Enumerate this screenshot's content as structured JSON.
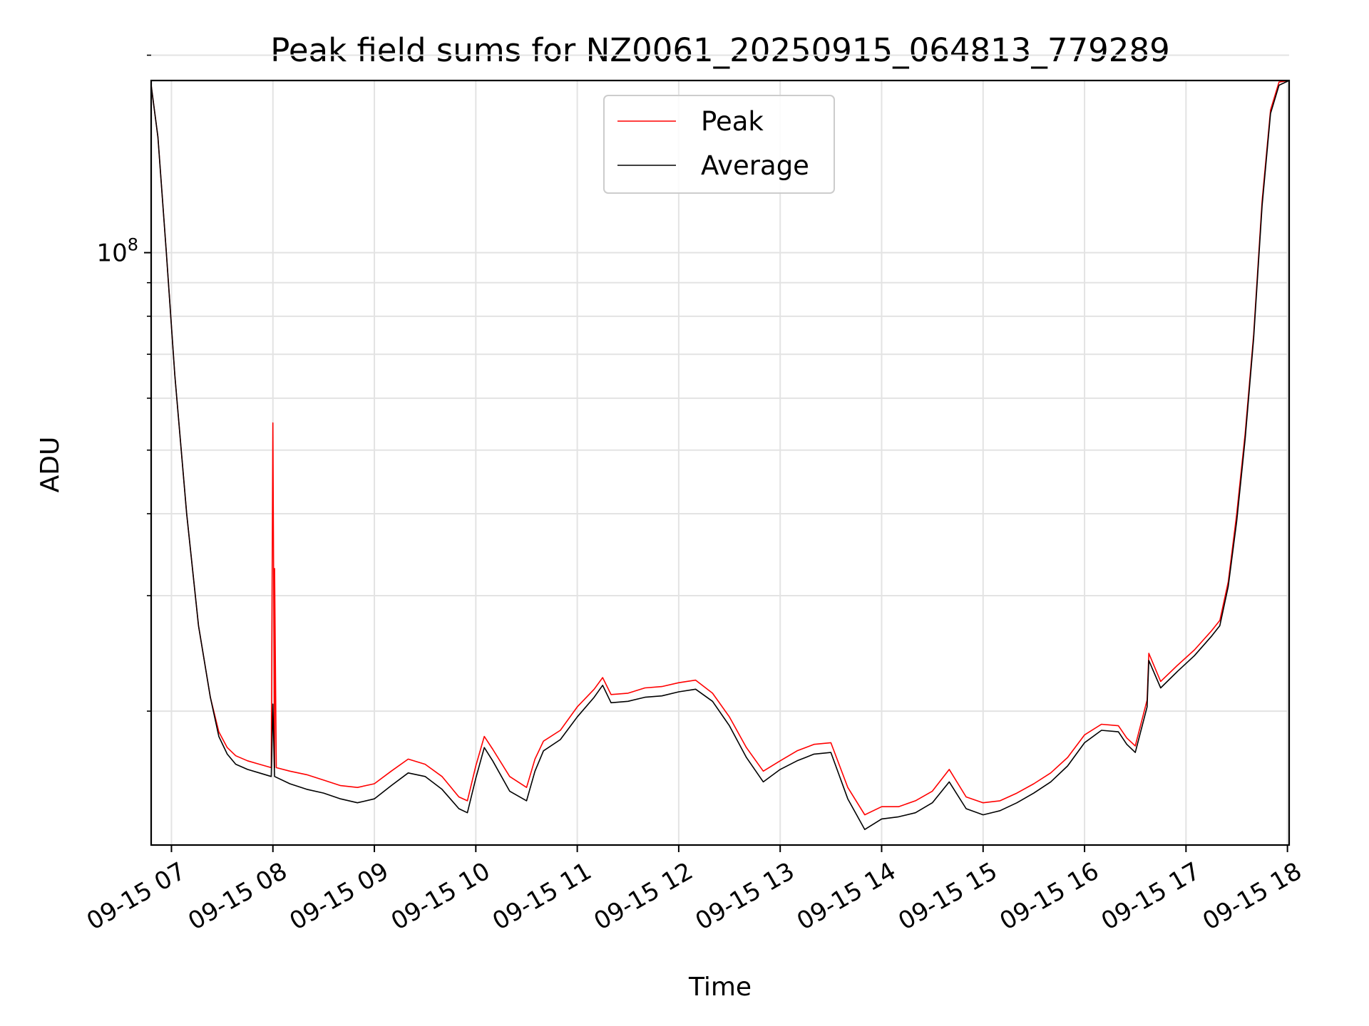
{
  "chart_data": {
    "type": "line",
    "title": "Peak field sums for NZ0061_20250915_064813_779289",
    "xlabel": "Time",
    "ylabel": "ADU",
    "y_scale": "log",
    "ylim": [
      12500000,
      183000000
    ],
    "y_major_ticks": [
      {
        "value": 100000000,
        "base": "10",
        "exp": "8"
      }
    ],
    "y_minor_ticks": [
      20000000,
      30000000,
      40000000,
      50000000,
      60000000,
      70000000,
      80000000,
      90000000,
      200000000
    ],
    "xlim": [
      "09-15 06:48",
      "09-15 18:01"
    ],
    "x_ticks": [
      "09-15 07",
      "09-15 08",
      "09-15 09",
      "09-15 10",
      "09-15 11",
      "09-15 12",
      "09-15 13",
      "09-15 14",
      "09-15 15",
      "09-15 16",
      "09-15 17",
      "09-15 18"
    ],
    "grid": true,
    "legend_position": "top-center",
    "series": [
      {
        "name": "Peak",
        "color": "#ff0000",
        "x": [
          "09-15 06:48",
          "09-15 06:52",
          "09-15 06:57",
          "09-15 07:02",
          "09-15 07:09",
          "09-15 07:16",
          "09-15 07:23",
          "09-15 07:28",
          "09-15 07:33",
          "09-15 07:38",
          "09-15 07:45",
          "09-15 07:52",
          "09-15 07:59",
          "09-15 08:00",
          "09-15 08:01",
          "09-15 08:01",
          "09-15 08:02",
          "09-15 08:10",
          "09-15 08:20",
          "09-15 08:30",
          "09-15 08:40",
          "09-15 08:50",
          "09-15 09:00",
          "09-15 09:10",
          "09-15 09:20",
          "09-15 09:30",
          "09-15 09:40",
          "09-15 09:50",
          "09-15 09:55",
          "09-15 10:00",
          "09-15 10:05",
          "09-15 10:10",
          "09-15 10:20",
          "09-15 10:30",
          "09-15 10:35",
          "09-15 10:40",
          "09-15 10:50",
          "09-15 11:00",
          "09-15 11:10",
          "09-15 11:15",
          "09-15 11:20",
          "09-15 11:30",
          "09-15 11:40",
          "09-15 11:50",
          "09-15 12:00",
          "09-15 12:10",
          "09-15 12:20",
          "09-15 12:30",
          "09-15 12:40",
          "09-15 12:50",
          "09-15 13:00",
          "09-15 13:10",
          "09-15 13:15",
          "09-15 13:20",
          "09-15 13:30",
          "09-15 13:40",
          "09-15 13:50",
          "09-15 14:00",
          "09-15 14:10",
          "09-15 14:20",
          "09-15 14:30",
          "09-15 14:40",
          "09-15 14:50",
          "09-15 15:00",
          "09-15 15:10",
          "09-15 15:20",
          "09-15 15:30",
          "09-15 15:40",
          "09-15 15:50",
          "09-15 16:00",
          "09-15 16:10",
          "09-15 16:20",
          "09-15 16:25",
          "09-15 16:30",
          "09-15 16:37",
          "09-15 16:38",
          "09-15 16:45",
          "09-15 16:55",
          "09-15 17:05",
          "09-15 17:15",
          "09-15 17:20",
          "09-15 17:25",
          "09-15 17:30",
          "09-15 17:35",
          "09-15 17:40",
          "09-15 17:45",
          "09-15 17:50",
          "09-15 17:55",
          "09-15 18:01"
        ],
        "y": [
          180000000,
          150000000,
          100000000,
          65000000,
          40000000,
          27000000,
          21000000,
          18600000,
          17600000,
          17100000,
          16800000,
          16600000,
          16400000,
          55000000,
          16400000,
          33000000,
          16400000,
          16200000,
          16000000,
          15700000,
          15400000,
          15300000,
          15500000,
          16200000,
          16900000,
          16600000,
          15900000,
          14800000,
          14600000,
          16500000,
          18300000,
          17500000,
          15900000,
          15300000,
          16900000,
          18000000,
          18700000,
          20300000,
          21600000,
          22500000,
          21200000,
          21300000,
          21700000,
          21800000,
          22100000,
          22300000,
          21300000,
          19600000,
          17600000,
          16200000,
          16800000,
          17400000,
          17600000,
          17800000,
          17900000,
          15300000,
          13900000,
          14300000,
          14300000,
          14600000,
          15100000,
          16300000,
          14800000,
          14500000,
          14600000,
          15000000,
          15500000,
          16100000,
          17000000,
          18400000,
          19100000,
          19000000,
          18200000,
          17700000,
          20800000,
          24500000,
          22200000,
          23500000,
          24800000,
          26500000,
          27500000,
          31500000,
          40000000,
          53000000,
          75000000,
          120000000,
          165000000,
          182000000,
          183000000
        ]
      },
      {
        "name": "Average",
        "color": "#000000",
        "x": [
          "09-15 06:48",
          "09-15 06:52",
          "09-15 06:57",
          "09-15 07:02",
          "09-15 07:09",
          "09-15 07:16",
          "09-15 07:23",
          "09-15 07:28",
          "09-15 07:33",
          "09-15 07:38",
          "09-15 07:45",
          "09-15 07:52",
          "09-15 07:59",
          "09-15 08:00",
          "09-15 08:01",
          "09-15 08:10",
          "09-15 08:20",
          "09-15 08:30",
          "09-15 08:40",
          "09-15 08:50",
          "09-15 09:00",
          "09-15 09:10",
          "09-15 09:20",
          "09-15 09:30",
          "09-15 09:40",
          "09-15 09:50",
          "09-15 09:55",
          "09-15 10:00",
          "09-15 10:05",
          "09-15 10:10",
          "09-15 10:20",
          "09-15 10:30",
          "09-15 10:35",
          "09-15 10:40",
          "09-15 10:50",
          "09-15 11:00",
          "09-15 11:10",
          "09-15 11:15",
          "09-15 11:20",
          "09-15 11:30",
          "09-15 11:40",
          "09-15 11:50",
          "09-15 12:00",
          "09-15 12:10",
          "09-15 12:20",
          "09-15 12:30",
          "09-15 12:40",
          "09-15 12:50",
          "09-15 13:00",
          "09-15 13:10",
          "09-15 13:15",
          "09-15 13:20",
          "09-15 13:30",
          "09-15 13:40",
          "09-15 13:50",
          "09-15 14:00",
          "09-15 14:10",
          "09-15 14:20",
          "09-15 14:30",
          "09-15 14:40",
          "09-15 14:50",
          "09-15 15:00",
          "09-15 15:10",
          "09-15 15:20",
          "09-15 15:30",
          "09-15 15:40",
          "09-15 15:50",
          "09-15 16:00",
          "09-15 16:10",
          "09-15 16:20",
          "09-15 16:25",
          "09-15 16:30",
          "09-15 16:37",
          "09-15 16:38",
          "09-15 16:45",
          "09-15 16:55",
          "09-15 17:05",
          "09-15 17:15",
          "09-15 17:20",
          "09-15 17:25",
          "09-15 17:30",
          "09-15 17:35",
          "09-15 17:40",
          "09-15 17:45",
          "09-15 17:50",
          "09-15 17:55",
          "09-15 18:01"
        ],
        "y": [
          180000000,
          150000000,
          100000000,
          65000000,
          40000000,
          27000000,
          21000000,
          18300000,
          17200000,
          16600000,
          16300000,
          16100000,
          15900000,
          20500000,
          15900000,
          15500000,
          15200000,
          15000000,
          14700000,
          14500000,
          14700000,
          15400000,
          16100000,
          15900000,
          15200000,
          14200000,
          14000000,
          15800000,
          17600000,
          16800000,
          15100000,
          14600000,
          16200000,
          17400000,
          18100000,
          19600000,
          21000000,
          21900000,
          20600000,
          20700000,
          21000000,
          21100000,
          21400000,
          21600000,
          20700000,
          19000000,
          17000000,
          15600000,
          16300000,
          16800000,
          17000000,
          17200000,
          17300000,
          14700000,
          13200000,
          13700000,
          13800000,
          14000000,
          14500000,
          15600000,
          14200000,
          13900000,
          14100000,
          14500000,
          15000000,
          15600000,
          16500000,
          17900000,
          18700000,
          18600000,
          17800000,
          17300000,
          20300000,
          23900000,
          21700000,
          23000000,
          24300000,
          26000000,
          27000000,
          31000000,
          39000000,
          52000000,
          74000000,
          118000000,
          163000000,
          180000000,
          183000000
        ]
      }
    ]
  }
}
